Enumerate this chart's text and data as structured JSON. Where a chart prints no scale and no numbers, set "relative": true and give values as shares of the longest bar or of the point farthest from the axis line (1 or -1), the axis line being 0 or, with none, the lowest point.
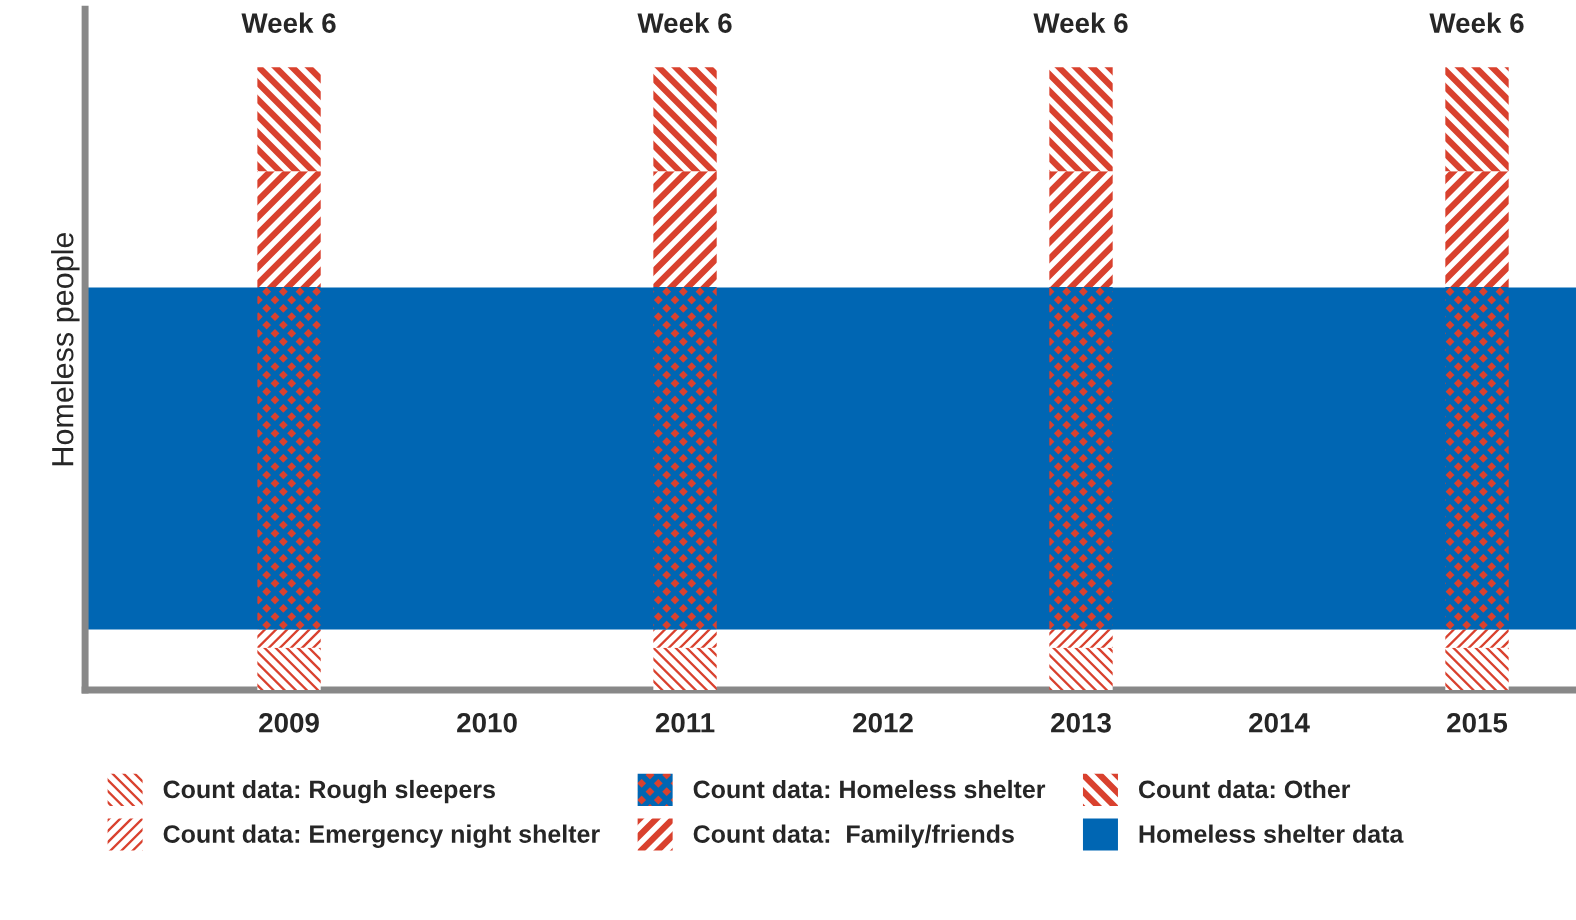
{
  "chart_data": {
    "type": "bar",
    "stacked": true,
    "relative": true,
    "ylabel": "Homeless people",
    "categories": [
      "2009",
      "2010",
      "2011",
      "2012",
      "2013",
      "2014",
      "2015"
    ],
    "series": [
      {
        "name": "Count data: Rough sleepers",
        "color": "#d9412e",
        "values": [
          0.068,
          null,
          0.068,
          null,
          0.068,
          null,
          0.068
        ]
      },
      {
        "name": "Count data: Emergency night shelter",
        "color": "#d9412e",
        "values": [
          0.029,
          null,
          0.029,
          null,
          0.029,
          null,
          0.029
        ]
      },
      {
        "name": "Count data: Homeless shelter",
        "color": "#d9412e",
        "values": [
          0.55,
          null,
          0.55,
          null,
          0.55,
          null,
          0.55
        ]
      },
      {
        "name": "Count data:  Family/friends",
        "color": "#d9412e",
        "values": [
          0.186,
          null,
          0.186,
          null,
          0.186,
          null,
          0.186
        ]
      },
      {
        "name": "Count data: Other",
        "color": "#d9412e",
        "values": [
          0.167,
          null,
          0.167,
          null,
          0.167,
          null,
          0.167
        ]
      }
    ],
    "bands": [
      {
        "axis": "y",
        "from": 0.097,
        "to": 0.646,
        "label": "Homeless shelter data",
        "color": "#0066b3"
      }
    ],
    "annotations": [
      {
        "text": "Week 6",
        "x": "2009",
        "y": 1
      },
      {
        "text": "Week 6",
        "x": "2011",
        "y": 1
      },
      {
        "text": "Week 6",
        "x": "2013",
        "y": 1
      },
      {
        "text": "Week 6",
        "x": "2015",
        "y": 1
      }
    ],
    "legend": "bottom",
    "grid": false
  }
}
